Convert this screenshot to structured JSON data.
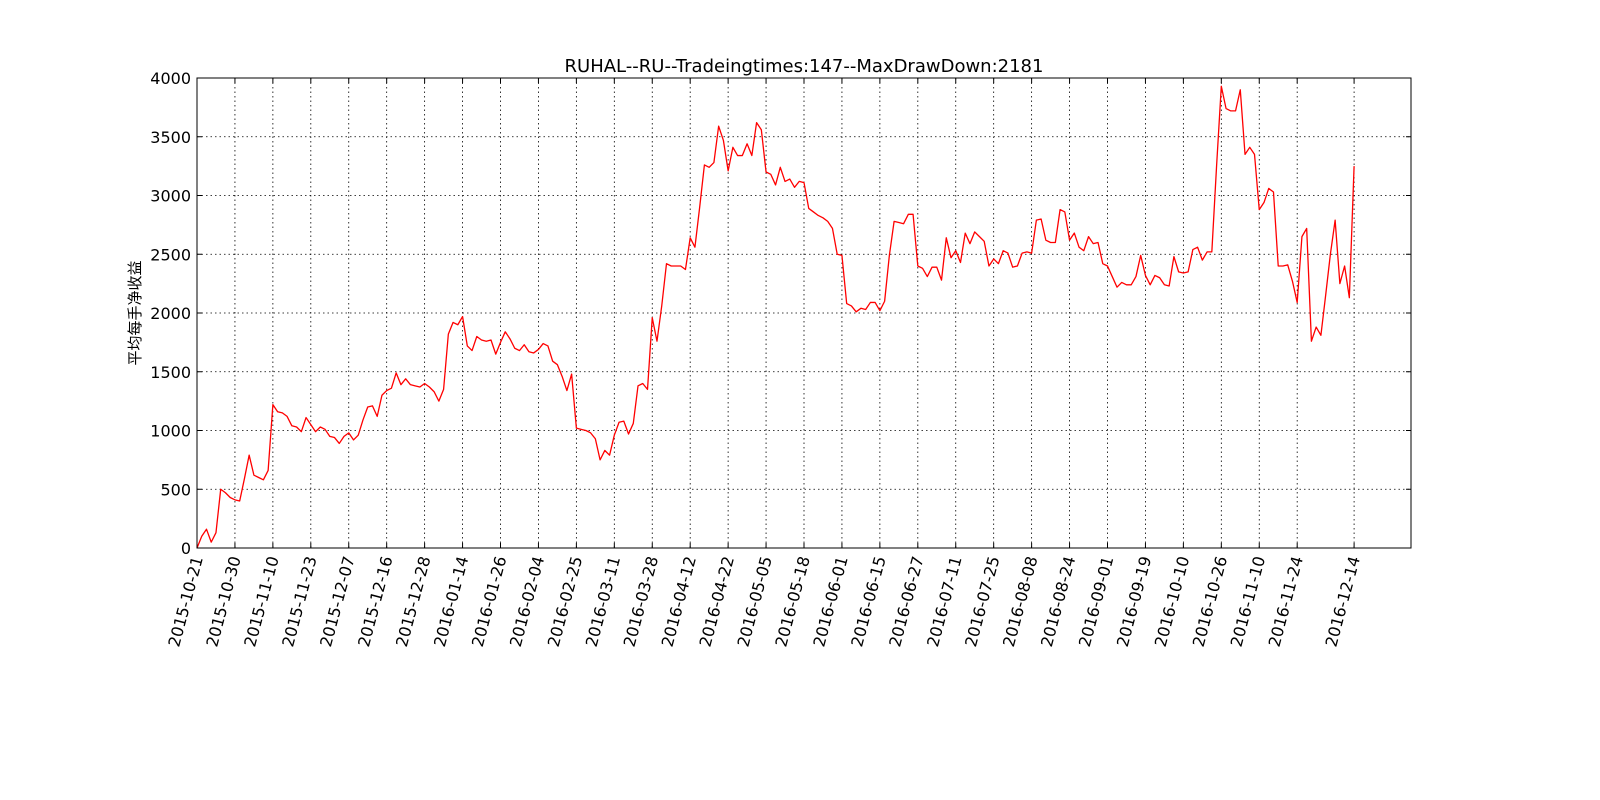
{
  "chart_data": {
    "type": "line",
    "title": "RUHAL--RU--Tradeingtimes:147--MaxDrawDown:2181",
    "y_label": "平均每手净收益",
    "color": "#ff0000",
    "grid": true,
    "values": [
      0,
      100,
      160,
      50,
      130,
      500,
      470,
      430,
      410,
      400,
      590,
      790,
      620,
      600,
      580,
      660,
      1220,
      1160,
      1150,
      1120,
      1040,
      1030,
      990,
      1110,
      1050,
      990,
      1030,
      1010,
      950,
      940,
      890,
      950,
      980,
      920,
      960,
      1090,
      1200,
      1210,
      1120,
      1300,
      1340,
      1360,
      1490,
      1390,
      1440,
      1390,
      1380,
      1370,
      1400,
      1370,
      1330,
      1250,
      1350,
      1820,
      1920,
      1900,
      1970,
      1720,
      1680,
      1800,
      1770,
      1760,
      1770,
      1650,
      1750,
      1840,
      1780,
      1700,
      1680,
      1730,
      1670,
      1660,
      1690,
      1740,
      1720,
      1590,
      1560,
      1460,
      1340,
      1480,
      1020,
      1010,
      1000,
      980,
      930,
      750,
      830,
      790,
      960,
      1070,
      1080,
      970,
      1060,
      1380,
      1400,
      1350,
      1960,
      1760,
      2060,
      2420,
      2400,
      2400,
      2400,
      2370,
      2640,
      2560,
      2900,
      3260,
      3240,
      3280,
      3590,
      3470,
      3210,
      3410,
      3340,
      3340,
      3440,
      3340,
      3620,
      3560,
      3200,
      3180,
      3090,
      3240,
      3120,
      3140,
      3070,
      3120,
      3110,
      2890,
      2860,
      2830,
      2810,
      2780,
      2720,
      2500,
      2490,
      2080,
      2060,
      2010,
      2040,
      2030,
      2090,
      2090,
      2020,
      2100,
      2490,
      2780,
      2770,
      2760,
      2840,
      2840,
      2400,
      2380,
      2310,
      2390,
      2390,
      2280,
      2640,
      2470,
      2530,
      2430,
      2680,
      2590,
      2690,
      2650,
      2610,
      2400,
      2460,
      2420,
      2530,
      2510,
      2390,
      2400,
      2510,
      2520,
      2510,
      2790,
      2800,
      2620,
      2600,
      2600,
      2880,
      2860,
      2620,
      2680,
      2560,
      2530,
      2650,
      2590,
      2600,
      2420,
      2400,
      2310,
      2220,
      2260,
      2240,
      2240,
      2310,
      2490,
      2320,
      2240,
      2320,
      2300,
      2240,
      2230,
      2480,
      2350,
      2340,
      2350,
      2540,
      2560,
      2450,
      2520,
      2520,
      3250,
      3930,
      3740,
      3720,
      3720,
      3900,
      3350,
      3410,
      3350,
      2880,
      2940,
      3060,
      3030,
      2400,
      2400,
      2410,
      2270,
      2090,
      2650,
      2720,
      1760,
      1880,
      1810,
      2150,
      2500,
      2790,
      2250,
      2400,
      2130,
      3250
    ],
    "xlim": [
      0,
      256
    ],
    "xticks": [
      {
        "value": 0,
        "label": "2015-10-21"
      },
      {
        "value": 8,
        "label": "2015-10-30"
      },
      {
        "value": 16,
        "label": "2015-11-10"
      },
      {
        "value": 24,
        "label": "2015-11-23"
      },
      {
        "value": 32,
        "label": "2015-12-07"
      },
      {
        "value": 40,
        "label": "2015-12-16"
      },
      {
        "value": 48,
        "label": "2015-12-28"
      },
      {
        "value": 56,
        "label": "2016-01-14"
      },
      {
        "value": 64,
        "label": "2016-01-26"
      },
      {
        "value": 72,
        "label": "2016-02-04"
      },
      {
        "value": 80,
        "label": "2016-02-25"
      },
      {
        "value": 88,
        "label": "2016-03-11"
      },
      {
        "value": 96,
        "label": "2016-03-28"
      },
      {
        "value": 104,
        "label": "2016-04-12"
      },
      {
        "value": 112,
        "label": "2016-04-22"
      },
      {
        "value": 120,
        "label": "2016-05-05"
      },
      {
        "value": 128,
        "label": "2016-05-18"
      },
      {
        "value": 136,
        "label": "2016-06-01"
      },
      {
        "value": 144,
        "label": "2016-06-15"
      },
      {
        "value": 152,
        "label": "2016-06-27"
      },
      {
        "value": 160,
        "label": "2016-07-11"
      },
      {
        "value": 168,
        "label": "2016-07-25"
      },
      {
        "value": 176,
        "label": "2016-08-08"
      },
      {
        "value": 184,
        "label": "2016-08-24"
      },
      {
        "value": 192,
        "label": "2016-09-01"
      },
      {
        "value": 200,
        "label": "2016-09-19"
      },
      {
        "value": 208,
        "label": "2016-10-10"
      },
      {
        "value": 216,
        "label": "2016-10-26"
      },
      {
        "value": 224,
        "label": "2016-11-10"
      },
      {
        "value": 232,
        "label": "2016-11-24"
      },
      {
        "value": 244,
        "label": "2016-12-14"
      }
    ],
    "ylim": [
      0,
      4000
    ],
    "yticks": [
      0,
      500,
      1000,
      1500,
      2000,
      2500,
      3000,
      3500,
      4000
    ]
  }
}
